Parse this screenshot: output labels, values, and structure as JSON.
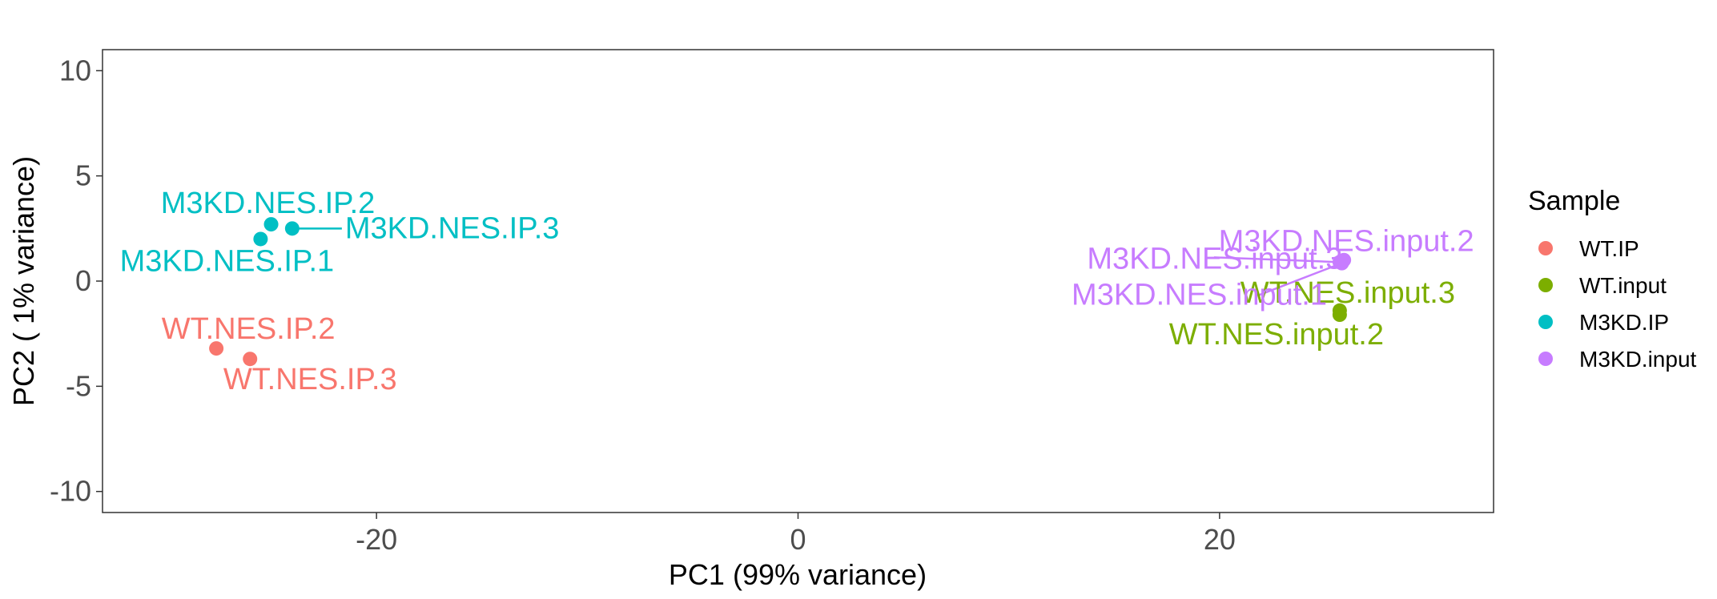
{
  "chart_data": {
    "type": "scatter",
    "xlabel": "PC1 (99% variance)",
    "ylabel": "PC2 ( 1% variance)",
    "xlim": [
      -33,
      33
    ],
    "ylim": [
      -11,
      11
    ],
    "x_ticks": [
      -20,
      0,
      20
    ],
    "x_tick_labels": [
      "-20",
      "0",
      "20"
    ],
    "y_ticks": [
      10,
      5,
      0,
      -5,
      -10
    ],
    "y_tick_labels": [
      "10",
      "5",
      "0",
      "-5",
      "-10"
    ],
    "grid": false,
    "legend": {
      "title": "Sample",
      "position": "right",
      "entries": [
        "WT.IP",
        "WT.input",
        "M3KD.IP",
        "M3KD.input"
      ]
    },
    "colors": {
      "WT.IP": "#F8766D",
      "WT.input": "#7CAE00",
      "M3KD.IP": "#00BFC4",
      "M3KD.input": "#C77CFF"
    },
    "series": [
      {
        "name": "WT.IP",
        "points": [
          {
            "label": "WT.NES.IP.2",
            "x": -27.6,
            "y": -3.2
          },
          {
            "label": "WT.NES.IP.3",
            "x": -26.0,
            "y": -3.7
          }
        ]
      },
      {
        "name": "WT.input",
        "points": [
          {
            "label": "WT.NES.input.3",
            "x": 25.7,
            "y": -1.4
          },
          {
            "label": "WT.NES.input.2",
            "x": 25.7,
            "y": -1.6
          }
        ]
      },
      {
        "name": "M3KD.IP",
        "points": [
          {
            "label": "M3KD.NES.IP.2",
            "x": -25.0,
            "y": 2.7
          },
          {
            "label": "M3KD.NES.IP.3",
            "x": -24.0,
            "y": 2.5
          },
          {
            "label": "M3KD.NES.IP.1",
            "x": -25.5,
            "y": 2.0
          }
        ]
      },
      {
        "name": "M3KD.input",
        "points": [
          {
            "label": "M3KD.NES.input.2",
            "x": 25.9,
            "y": 1.0
          },
          {
            "label": "M3KD.NES.input.3",
            "x": 25.7,
            "y": 0.9
          },
          {
            "label": "M3KD.NES.input.1",
            "x": 25.8,
            "y": 0.85
          }
        ]
      }
    ]
  }
}
